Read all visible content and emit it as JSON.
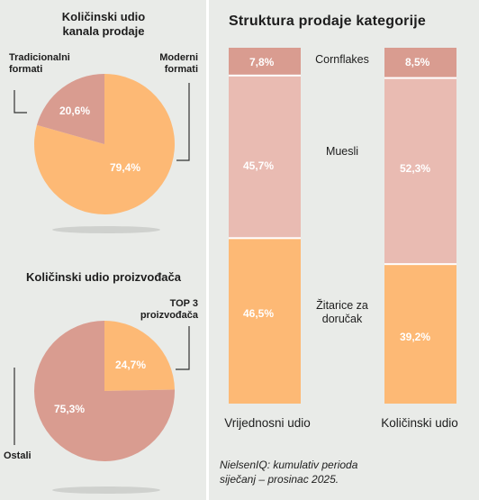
{
  "chart_data": [
    {
      "type": "pie",
      "title": "Količinski udio kanala prodaje",
      "title_line1": "Količinski udio",
      "title_line2": "kanala prodaje",
      "slices": [
        {
          "label": "Tradicionalni formati",
          "label_line1": "Tradicionalni",
          "label_line2": "formati",
          "value": 20.6,
          "value_label": "20,6%",
          "color": "#d99c90"
        },
        {
          "label": "Moderni formati",
          "label_line1": "Moderni",
          "label_line2": "formati",
          "value": 79.4,
          "value_label": "79,4%",
          "color": "#fdb975"
        }
      ]
    },
    {
      "type": "pie",
      "title": "Količinski udio proizvođača",
      "slices": [
        {
          "label": "TOP 3 proizvođača",
          "label_line1": "TOP 3",
          "label_line2": "proizvođača",
          "value": 24.7,
          "value_label": "24,7%",
          "color": "#fdb975"
        },
        {
          "label": "Ostali",
          "value": 75.3,
          "value_label": "75,3%",
          "color": "#d99c90"
        }
      ]
    },
    {
      "type": "bar",
      "stacked": true,
      "percent": true,
      "title": "Struktura prodaje kategorije",
      "categories": [
        "Vrijednosni udio",
        "Količinski udio"
      ],
      "series": [
        {
          "name": "Žitarice za doručak",
          "name_line1": "Žitarice za",
          "name_line2": "doručak",
          "values": [
            46.5,
            39.2
          ],
          "value_labels": [
            "46,5%",
            "39,2%"
          ],
          "color": "#fdb975"
        },
        {
          "name": "Muesli",
          "values": [
            45.7,
            52.3
          ],
          "value_labels": [
            "45,7%",
            "52,3%"
          ],
          "color": "#e9bbb2"
        },
        {
          "name": "Cornflakes",
          "values": [
            7.8,
            8.5
          ],
          "value_labels": [
            "7,8%",
            "8,5%"
          ],
          "color": "#d99c90"
        }
      ]
    }
  ],
  "source_line1": "NielsenIQ: kumulativ perioda",
  "source_line2": "siječanj – prosinac 2025."
}
